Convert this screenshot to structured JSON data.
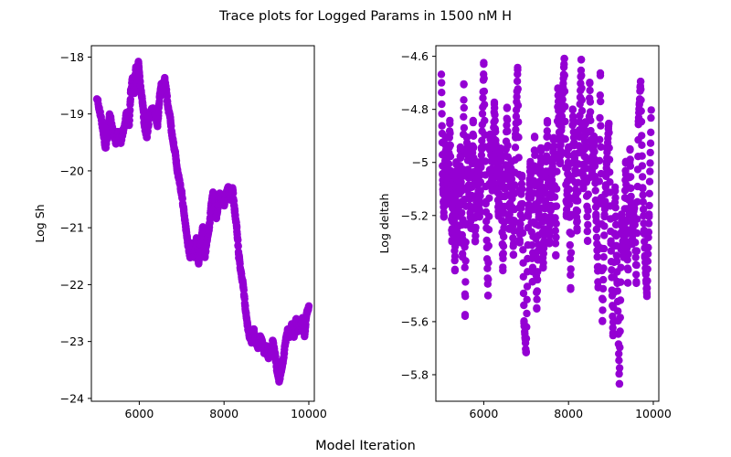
{
  "figure": {
    "title": "Trace plots for Logged Params in 1500 nM H",
    "xlabel": "Model Iteration"
  },
  "colors": {
    "marker": "#9400D3",
    "axes": "#000000",
    "background": "#ffffff"
  },
  "chart_data": [
    {
      "type": "scatter",
      "ylabel": "Log Sh",
      "xlim": [
        4870,
        10130
      ],
      "ylim": [
        -24.05,
        -17.8
      ],
      "xticks": [
        6000,
        8000,
        10000
      ],
      "yticks": [
        -24,
        -23,
        -22,
        -21,
        -20,
        -19,
        -18
      ],
      "grid": false,
      "series": [
        {
          "x": [
            5000,
            5080,
            5150,
            5200,
            5250,
            5300,
            5380,
            5450,
            5500,
            5560,
            5620,
            5700,
            5760,
            5800,
            5840,
            5880,
            5920,
            5950,
            5980,
            6000,
            6040,
            6080,
            6120,
            6180,
            6250,
            6320,
            6380,
            6430,
            6480,
            6520,
            6560,
            6600,
            6640,
            6680,
            6720,
            6760,
            6800,
            6850,
            6900,
            6950,
            7000,
            7050,
            7100,
            7150,
            7200,
            7250,
            7300,
            7350,
            7400,
            7450,
            7500,
            7550,
            7600,
            7650,
            7700,
            7740,
            7780,
            7820,
            7860,
            7900,
            7950,
            8000,
            8050,
            8100,
            8150,
            8200,
            8250,
            8300,
            8350,
            8400,
            8450,
            8500,
            8550,
            8600,
            8650,
            8700,
            8750,
            8800,
            8850,
            8900,
            8950,
            9000,
            9050,
            9100,
            9150,
            9200,
            9250,
            9300,
            9350,
            9400,
            9450,
            9500,
            9550,
            9600,
            9650,
            9700,
            9750,
            9800,
            9850,
            9900,
            9950,
            10000
          ],
          "y": [
            -18.7,
            -19.0,
            -19.3,
            -19.6,
            -19.4,
            -19.0,
            -19.3,
            -19.5,
            -19.3,
            -19.5,
            -19.3,
            -19.0,
            -19.2,
            -18.6,
            -18.4,
            -18.6,
            -18.2,
            -18.6,
            -18.1,
            -18.3,
            -18.6,
            -18.8,
            -19.2,
            -19.4,
            -19.0,
            -18.9,
            -19.0,
            -19.2,
            -18.7,
            -18.5,
            -18.5,
            -18.4,
            -18.6,
            -18.9,
            -19.0,
            -19.3,
            -19.5,
            -19.7,
            -20.0,
            -20.2,
            -20.4,
            -20.7,
            -21.0,
            -21.3,
            -21.5,
            -21.3,
            -21.5,
            -21.2,
            -21.6,
            -21.3,
            -21.0,
            -21.5,
            -21.2,
            -21.0,
            -20.6,
            -20.4,
            -20.5,
            -20.8,
            -20.6,
            -20.4,
            -20.5,
            -20.6,
            -20.4,
            -20.3,
            -20.5,
            -20.3,
            -20.7,
            -21.0,
            -21.5,
            -21.8,
            -22.0,
            -22.4,
            -22.7,
            -22.9,
            -23.0,
            -22.8,
            -23.0,
            -23.1,
            -22.9,
            -23.0,
            -23.2,
            -23.1,
            -23.3,
            -23.2,
            -23.0,
            -23.2,
            -23.5,
            -23.7,
            -23.5,
            -23.3,
            -23.0,
            -22.8,
            -22.9,
            -22.7,
            -22.9,
            -22.6,
            -22.8,
            -22.7,
            -22.6,
            -22.9,
            -22.5,
            -22.4
          ]
        }
      ]
    },
    {
      "type": "scatter",
      "ylabel": "Log deltah",
      "xlim": [
        4870,
        10130
      ],
      "ylim": [
        -5.9,
        -4.56
      ],
      "xticks": [
        6000,
        8000,
        10000
      ],
      "yticks": [
        -5.8,
        -5.6,
        -5.4,
        -5.2,
        -5.0,
        -4.8,
        -4.6
      ],
      "grid": false,
      "series": [
        {
          "x": [
            5000,
            5030,
            5060,
            5100,
            5150,
            5200,
            5250,
            5280,
            5320,
            5350,
            5400,
            5450,
            5500,
            5530,
            5560,
            5600,
            5650,
            5700,
            5750,
            5800,
            5850,
            5900,
            5950,
            6000,
            6050,
            6100,
            6150,
            6200,
            6250,
            6300,
            6350,
            6400,
            6450,
            6500,
            6550,
            6600,
            6650,
            6700,
            6750,
            6800,
            6850,
            6900,
            6950,
            7000,
            7050,
            7100,
            7150,
            7200,
            7250,
            7300,
            7350,
            7400,
            7450,
            7500,
            7550,
            7600,
            7650,
            7700,
            7750,
            7800,
            7850,
            7900,
            7950,
            8000,
            8050,
            8100,
            8150,
            8200,
            8250,
            8300,
            8350,
            8400,
            8450,
            8500,
            8550,
            8600,
            8650,
            8700,
            8750,
            8800,
            8850,
            8900,
            8950,
            9000,
            9050,
            9100,
            9150,
            9200,
            9250,
            9300,
            9350,
            9400,
            9450,
            9500,
            9550,
            9600,
            9650,
            9700,
            9750,
            9800,
            9850,
            9900,
            9950
          ],
          "y": [
            -4.66,
            -5.05,
            -5.2,
            -4.9,
            -5.15,
            -4.85,
            -5.3,
            -5.05,
            -5.4,
            -5.0,
            -5.3,
            -4.95,
            -5.35,
            -4.7,
            -5.58,
            -4.9,
            -5.1,
            -5.25,
            -4.85,
            -5.3,
            -5.0,
            -5.2,
            -4.95,
            -4.63,
            -5.15,
            -5.5,
            -4.9,
            -5.1,
            -4.78,
            -5.0,
            -5.2,
            -4.95,
            -5.4,
            -5.1,
            -4.8,
            -5.25,
            -5.0,
            -5.35,
            -4.9,
            -4.65,
            -5.3,
            -5.05,
            -5.6,
            -5.72,
            -5.2,
            -5.0,
            -5.45,
            -4.9,
            -5.55,
            -5.2,
            -4.95,
            -5.4,
            -5.15,
            -4.85,
            -5.3,
            -5.1,
            -4.9,
            -5.35,
            -4.72,
            -5.0,
            -4.8,
            -4.61,
            -5.2,
            -4.95,
            -5.47,
            -4.8,
            -5.0,
            -5.25,
            -4.9,
            -4.62,
            -5.1,
            -4.85,
            -5.3,
            -4.7,
            -5.05,
            -4.9,
            -5.2,
            -5.47,
            -4.67,
            -5.6,
            -5.2,
            -5.0,
            -4.85,
            -5.3,
            -5.65,
            -5.1,
            -5.45,
            -5.83,
            -5.2,
            -5.35,
            -5.0,
            -5.45,
            -4.95,
            -5.3,
            -5.15,
            -5.45,
            -4.85,
            -4.69,
            -5.1,
            -5.35,
            -5.5,
            -5.2,
            -4.8
          ]
        }
      ]
    }
  ]
}
